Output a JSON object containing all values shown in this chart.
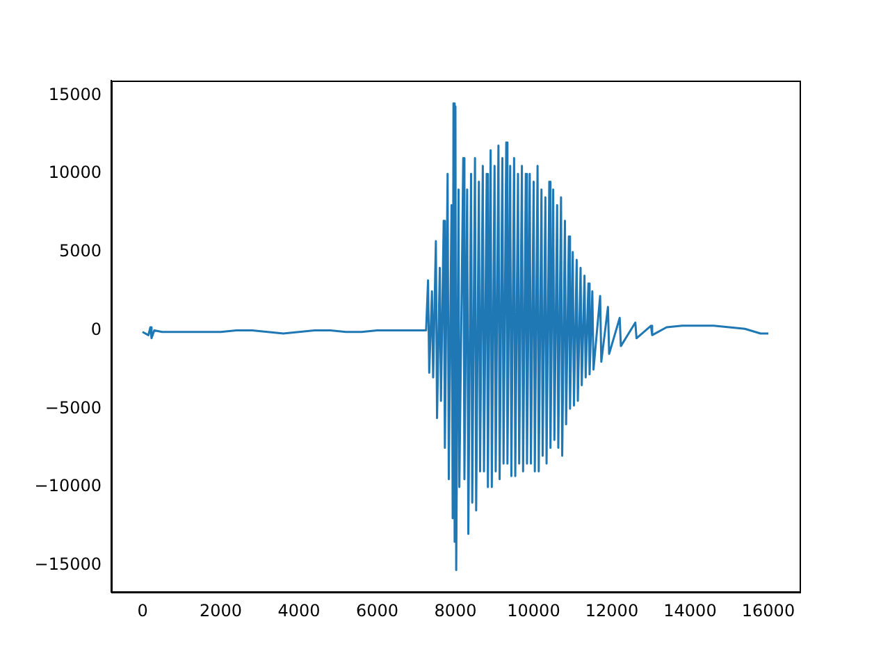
{
  "chart_data": {
    "type": "line",
    "xlim": [
      -800,
      16800
    ],
    "ylim": [
      -16700,
      15950
    ],
    "xticks": [
      0,
      2000,
      4000,
      6000,
      8000,
      10000,
      12000,
      14000,
      16000
    ],
    "yticks": [
      -15000,
      -10000,
      -5000,
      0,
      5000,
      10000,
      15000
    ],
    "grid": false,
    "legend": false,
    "marker": "none",
    "series": [
      {
        "color": "#1f77b4",
        "x": [
          0,
          150,
          200,
          230,
          300,
          500,
          800,
          1200,
          1600,
          2000,
          2400,
          2800,
          3200,
          3600,
          4000,
          4400,
          4800,
          5200,
          5600,
          6000,
          6400,
          6800,
          7250,
          7300,
          7330,
          7400,
          7430,
          7500,
          7530,
          7600,
          7630,
          7700,
          7730,
          7800,
          7830,
          7900,
          7930,
          7950,
          7980,
          8000,
          8020,
          8080,
          8100,
          8200,
          8230,
          8300,
          8330,
          8400,
          8430,
          8500,
          8530,
          8600,
          8630,
          8700,
          8730,
          8800,
          8830,
          8900,
          8930,
          9000,
          9030,
          9100,
          9130,
          9200,
          9230,
          9300,
          9330,
          9400,
          9430,
          9500,
          9530,
          9600,
          9630,
          9700,
          9730,
          9800,
          9830,
          9900,
          9930,
          10000,
          10030,
          10100,
          10130,
          10200,
          10230,
          10300,
          10330,
          10400,
          10430,
          10500,
          10530,
          10600,
          10630,
          10700,
          10730,
          10800,
          10830,
          10900,
          10930,
          11000,
          11030,
          11100,
          11130,
          11200,
          11230,
          11300,
          11330,
          11400,
          11430,
          11500,
          11530,
          11700,
          11730,
          11900,
          11930,
          12200,
          12230,
          12600,
          12630,
          13000,
          13030,
          13400,
          13800,
          14200,
          14600,
          15000,
          15400,
          15800,
          16000
        ],
        "values": [
          -100,
          -300,
          200,
          -500,
          0,
          -100,
          -100,
          -100,
          -100,
          -100,
          0,
          0,
          -100,
          -200,
          -100,
          0,
          0,
          -100,
          -100,
          0,
          0,
          0,
          0,
          3200,
          -2700,
          2500,
          -3000,
          5700,
          -5600,
          4000,
          -4500,
          7000,
          -7500,
          10000,
          -9500,
          8000,
          -12000,
          14500,
          -13500,
          14300,
          -15300,
          9000,
          -10000,
          11000,
          -9500,
          9000,
          -13000,
          10000,
          -11000,
          11000,
          -11500,
          9500,
          -9000,
          10500,
          -9000,
          10000,
          -10000,
          11500,
          -10000,
          10500,
          -9000,
          11800,
          -9500,
          11000,
          -8500,
          12000,
          -8500,
          10500,
          -9300,
          11000,
          -9300,
          10000,
          -8500,
          10500,
          -9000,
          10000,
          -8500,
          10000,
          -8500,
          9500,
          -9000,
          10500,
          -9000,
          9000,
          -8000,
          8500,
          -8500,
          9500,
          -7500,
          9000,
          -7000,
          8000,
          -7500,
          8500,
          -8000,
          7000,
          -6000,
          6000,
          -5000,
          5000,
          -4800,
          4500,
          -4500,
          4000,
          -3500,
          3500,
          -3000,
          3000,
          -2800,
          2500,
          -2500,
          2200,
          -2000,
          1500,
          -1500,
          800,
          -1000,
          500,
          -500,
          300,
          -300,
          200,
          300,
          300,
          300,
          200,
          100,
          -200,
          -200
        ]
      }
    ]
  }
}
